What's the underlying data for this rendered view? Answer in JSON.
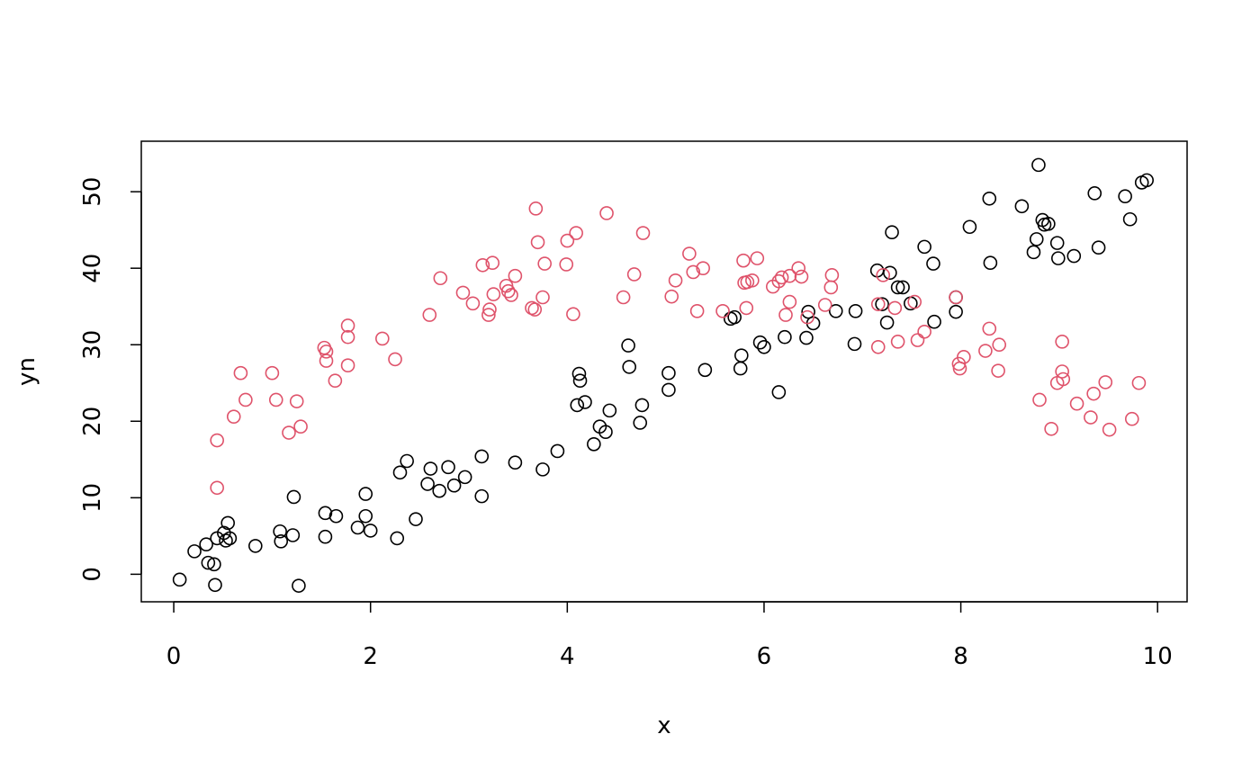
{
  "chart_data": {
    "type": "scatter",
    "title": "",
    "xlabel": "x",
    "ylabel": "yn",
    "xlim": [
      -0.33,
      10.3
    ],
    "ylim": [
      -3.6,
      56.6
    ],
    "xticks": [
      0,
      2,
      4,
      6,
      8,
      10
    ],
    "yticks": [
      0,
      10,
      20,
      30,
      40,
      50
    ],
    "grid": false,
    "legend": "none",
    "marker": "open-circle",
    "series": [
      {
        "color": "#000000",
        "points": [
          [
            0.06,
            -0.7
          ],
          [
            0.21,
            3.0
          ],
          [
            0.33,
            3.9
          ],
          [
            0.35,
            1.5
          ],
          [
            0.41,
            1.3
          ],
          [
            0.42,
            -1.4
          ],
          [
            0.44,
            4.7
          ],
          [
            0.51,
            5.4
          ],
          [
            0.53,
            4.4
          ],
          [
            0.55,
            6.7
          ],
          [
            0.57,
            4.7
          ],
          [
            0.83,
            3.7
          ],
          [
            1.08,
            5.6
          ],
          [
            1.09,
            4.3
          ],
          [
            1.21,
            5.1
          ],
          [
            1.22,
            10.1
          ],
          [
            1.27,
            -1.5
          ],
          [
            1.54,
            8.0
          ],
          [
            1.54,
            4.9
          ],
          [
            1.65,
            7.6
          ],
          [
            1.87,
            6.1
          ],
          [
            1.95,
            10.5
          ],
          [
            1.95,
            7.6
          ],
          [
            2.0,
            5.7
          ],
          [
            2.27,
            4.7
          ],
          [
            2.3,
            13.3
          ],
          [
            2.37,
            14.8
          ],
          [
            2.46,
            7.2
          ],
          [
            2.58,
            11.8
          ],
          [
            2.61,
            13.8
          ],
          [
            2.7,
            10.9
          ],
          [
            2.79,
            14.0
          ],
          [
            2.85,
            11.6
          ],
          [
            2.96,
            12.7
          ],
          [
            3.13,
            15.4
          ],
          [
            3.13,
            10.2
          ],
          [
            3.47,
            14.6
          ],
          [
            3.75,
            13.7
          ],
          [
            3.9,
            16.1
          ],
          [
            4.1,
            22.1
          ],
          [
            4.12,
            26.2
          ],
          [
            4.13,
            25.3
          ],
          [
            4.18,
            22.5
          ],
          [
            4.27,
            17.0
          ],
          [
            4.33,
            19.3
          ],
          [
            4.39,
            18.6
          ],
          [
            4.43,
            21.4
          ],
          [
            4.62,
            29.9
          ],
          [
            4.63,
            27.1
          ],
          [
            4.74,
            19.8
          ],
          [
            4.76,
            22.1
          ],
          [
            5.03,
            26.3
          ],
          [
            5.03,
            24.1
          ],
          [
            5.4,
            26.7
          ],
          [
            5.66,
            33.4
          ],
          [
            5.7,
            33.6
          ],
          [
            5.77,
            28.6
          ],
          [
            5.76,
            26.9
          ],
          [
            5.96,
            30.3
          ],
          [
            6.0,
            29.7
          ],
          [
            6.15,
            23.8
          ],
          [
            6.21,
            31.0
          ],
          [
            6.43,
            30.9
          ],
          [
            6.45,
            34.3
          ],
          [
            6.5,
            32.8
          ],
          [
            6.73,
            34.4
          ],
          [
            6.93,
            34.4
          ],
          [
            6.92,
            30.1
          ],
          [
            7.15,
            39.7
          ],
          [
            7.2,
            35.3
          ],
          [
            7.25,
            32.9
          ],
          [
            7.28,
            39.4
          ],
          [
            7.3,
            44.7
          ],
          [
            7.36,
            37.5
          ],
          [
            7.41,
            37.5
          ],
          [
            7.49,
            35.4
          ],
          [
            7.63,
            42.8
          ],
          [
            7.72,
            40.6
          ],
          [
            7.73,
            33.0
          ],
          [
            7.95,
            36.2
          ],
          [
            7.95,
            34.3
          ],
          [
            8.09,
            45.4
          ],
          [
            8.29,
            49.1
          ],
          [
            8.3,
            40.7
          ],
          [
            8.62,
            48.1
          ],
          [
            8.74,
            42.1
          ],
          [
            8.77,
            43.8
          ],
          [
            8.79,
            53.5
          ],
          [
            8.83,
            46.3
          ],
          [
            8.85,
            45.7
          ],
          [
            8.89,
            45.8
          ],
          [
            8.98,
            43.3
          ],
          [
            8.99,
            41.3
          ],
          [
            9.15,
            41.6
          ],
          [
            9.36,
            49.8
          ],
          [
            9.4,
            42.7
          ],
          [
            9.67,
            49.4
          ],
          [
            9.72,
            46.4
          ],
          [
            9.84,
            51.2
          ],
          [
            9.89,
            51.5
          ]
        ]
      },
      {
        "color": "#DF536B",
        "points": [
          [
            0.44,
            17.5
          ],
          [
            0.44,
            11.3
          ],
          [
            0.61,
            20.6
          ],
          [
            0.68,
            26.3
          ],
          [
            0.73,
            22.8
          ],
          [
            1.0,
            26.3
          ],
          [
            1.04,
            22.8
          ],
          [
            1.17,
            18.5
          ],
          [
            1.25,
            22.6
          ],
          [
            1.29,
            19.3
          ],
          [
            1.53,
            29.6
          ],
          [
            1.55,
            29.1
          ],
          [
            1.55,
            27.9
          ],
          [
            1.64,
            25.3
          ],
          [
            1.77,
            32.5
          ],
          [
            1.77,
            31.0
          ],
          [
            1.77,
            27.3
          ],
          [
            2.12,
            30.8
          ],
          [
            2.25,
            28.1
          ],
          [
            2.6,
            33.9
          ],
          [
            2.71,
            38.7
          ],
          [
            2.94,
            36.8
          ],
          [
            3.04,
            35.4
          ],
          [
            3.14,
            40.4
          ],
          [
            3.2,
            33.9
          ],
          [
            3.21,
            34.6
          ],
          [
            3.24,
            40.7
          ],
          [
            3.25,
            36.6
          ],
          [
            3.38,
            37.7
          ],
          [
            3.4,
            37.0
          ],
          [
            3.43,
            36.5
          ],
          [
            3.47,
            39.0
          ],
          [
            3.64,
            34.8
          ],
          [
            3.67,
            34.6
          ],
          [
            3.68,
            47.8
          ],
          [
            3.7,
            43.4
          ],
          [
            3.75,
            36.2
          ],
          [
            3.77,
            40.6
          ],
          [
            3.99,
            40.5
          ],
          [
            4.0,
            43.6
          ],
          [
            4.06,
            34.0
          ],
          [
            4.09,
            44.6
          ],
          [
            4.4,
            47.2
          ],
          [
            4.57,
            36.2
          ],
          [
            4.68,
            39.2
          ],
          [
            4.77,
            44.6
          ],
          [
            5.06,
            36.3
          ],
          [
            5.1,
            38.4
          ],
          [
            5.24,
            41.9
          ],
          [
            5.28,
            39.5
          ],
          [
            5.32,
            34.4
          ],
          [
            5.38,
            40.0
          ],
          [
            5.58,
            34.4
          ],
          [
            5.79,
            41.0
          ],
          [
            5.8,
            38.1
          ],
          [
            5.82,
            34.8
          ],
          [
            5.83,
            38.2
          ],
          [
            5.88,
            38.4
          ],
          [
            5.93,
            41.3
          ],
          [
            6.09,
            37.6
          ],
          [
            6.15,
            38.3
          ],
          [
            6.18,
            38.8
          ],
          [
            6.22,
            33.9
          ],
          [
            6.26,
            35.6
          ],
          [
            6.26,
            39.0
          ],
          [
            6.35,
            40.0
          ],
          [
            6.38,
            38.9
          ],
          [
            6.44,
            33.6
          ],
          [
            6.62,
            35.2
          ],
          [
            6.68,
            37.5
          ],
          [
            6.69,
            39.1
          ],
          [
            7.16,
            29.7
          ],
          [
            7.16,
            35.3
          ],
          [
            7.21,
            39.1
          ],
          [
            7.33,
            34.8
          ],
          [
            7.36,
            30.4
          ],
          [
            7.53,
            35.6
          ],
          [
            7.56,
            30.6
          ],
          [
            7.63,
            31.7
          ],
          [
            7.95,
            36.2
          ],
          [
            7.98,
            27.5
          ],
          [
            7.99,
            26.9
          ],
          [
            8.03,
            28.4
          ],
          [
            8.25,
            29.2
          ],
          [
            8.29,
            32.1
          ],
          [
            8.38,
            26.6
          ],
          [
            8.39,
            30.0
          ],
          [
            8.8,
            22.8
          ],
          [
            8.92,
            19.0
          ],
          [
            8.98,
            25.0
          ],
          [
            9.03,
            30.4
          ],
          [
            9.03,
            26.5
          ],
          [
            9.04,
            25.5
          ],
          [
            9.18,
            22.3
          ],
          [
            9.32,
            20.5
          ],
          [
            9.35,
            23.6
          ],
          [
            9.47,
            25.1
          ],
          [
            9.51,
            18.9
          ],
          [
            9.74,
            20.3
          ],
          [
            9.81,
            25.0
          ]
        ]
      }
    ]
  }
}
